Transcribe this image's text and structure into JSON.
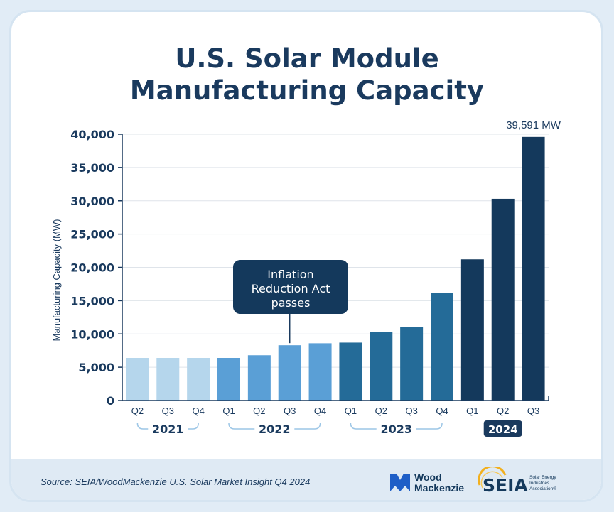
{
  "title_line1": "U.S. Solar Module",
  "title_line2": "Manufacturing Capacity",
  "source": "Source: SEIA/WoodMackenzie U.S. Solar Market Insight Q4 2024",
  "logos": {
    "woodmac_line1": "Wood",
    "woodmac_line2": "Mackenzie",
    "seia_name": "SEIA",
    "seia_tag1": "Solar Energy",
    "seia_tag2": "Industries",
    "seia_tag3": "Association®"
  },
  "colors": {
    "navy": "#1a3a5e",
    "y2021": "#b5d6ec",
    "y2022": "#5a9fd6",
    "y2023": "#246b98",
    "y2024": "#14395c"
  },
  "annotation": {
    "lines": [
      "Inflation",
      "Reduction Act",
      "passes"
    ],
    "at_index": 5
  },
  "chart_data": {
    "type": "bar",
    "title": "U.S. Solar Module Manufacturing Capacity",
    "ylabel": "Manufacturing Capacity (MW)",
    "xlabel": "",
    "ylim": [
      0,
      40000
    ],
    "yticks": [
      0,
      5000,
      10000,
      15000,
      20000,
      25000,
      30000,
      35000,
      40000
    ],
    "ytick_labels": [
      "0",
      "5,000",
      "10,000",
      "15,000",
      "20,000",
      "25,000",
      "30,000",
      "35,000",
      "40,000"
    ],
    "categories": [
      "Q2",
      "Q3",
      "Q4",
      "Q1",
      "Q2",
      "Q3",
      "Q4",
      "Q1",
      "Q2",
      "Q3",
      "Q4",
      "Q1",
      "Q2",
      "Q3"
    ],
    "years": [
      "2021",
      "2021",
      "2021",
      "2022",
      "2022",
      "2022",
      "2022",
      "2023",
      "2023",
      "2023",
      "2023",
      "2024",
      "2024",
      "2024"
    ],
    "year_groups": [
      {
        "label": "2021",
        "start": 0,
        "end": 2,
        "highlight": false
      },
      {
        "label": "2022",
        "start": 3,
        "end": 6,
        "highlight": false
      },
      {
        "label": "2023",
        "start": 7,
        "end": 10,
        "highlight": false
      },
      {
        "label": "2024",
        "start": 11,
        "end": 13,
        "highlight": true
      }
    ],
    "values": [
      6400,
      6400,
      6400,
      6400,
      6800,
      8300,
      8600,
      8700,
      10300,
      11000,
      16200,
      21200,
      30300,
      39591
    ],
    "data_label": {
      "index": 13,
      "text": "39,591 MW"
    },
    "grid": true,
    "legend": "none"
  }
}
